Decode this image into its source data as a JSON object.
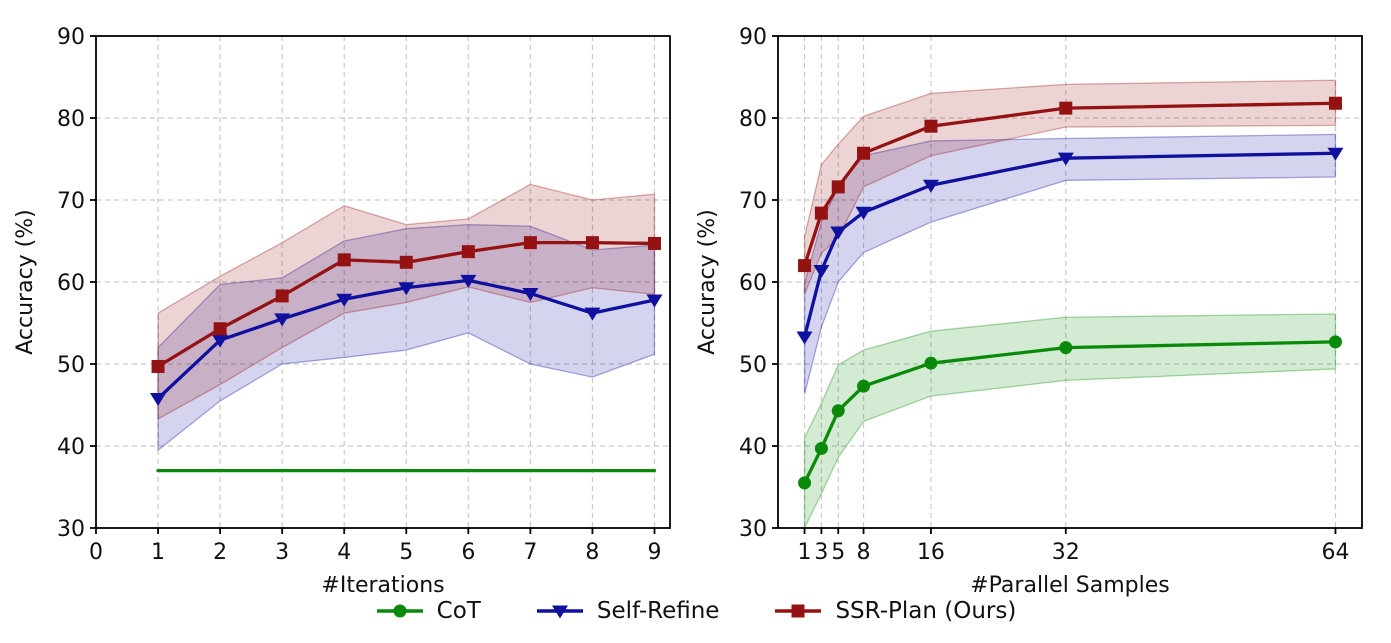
{
  "colors": {
    "cot": "#0a8a0a",
    "self_refine": "#10109e",
    "ssr_plan": "#941212",
    "grid": "#c9c9c9",
    "axis": "#000000",
    "band_fill_opacity": 0.18,
    "band_edge_opacity": 0.35
  },
  "legend": {
    "items": [
      {
        "label": "CoT",
        "marker": "circle",
        "color_key": "cot"
      },
      {
        "label": "Self-Refine",
        "marker": "triangle-down",
        "color_key": "self_refine"
      },
      {
        "label": "SSR-Plan (Ours)",
        "marker": "square",
        "color_key": "ssr_plan"
      }
    ]
  },
  "chart_data": [
    {
      "type": "line",
      "title": "",
      "xlabel": "#Iterations",
      "ylabel": "Accuracy (%)",
      "xlim": [
        0,
        9.25
      ],
      "ylim": [
        30,
        90
      ],
      "xticks": [
        0,
        1,
        2,
        3,
        4,
        5,
        6,
        7,
        8,
        9
      ],
      "yticks": [
        30,
        40,
        50,
        60,
        70,
        80,
        90
      ],
      "grid": true,
      "legend_position": "figure-bottom-center",
      "series": [
        {
          "name": "CoT",
          "color_key": "cot",
          "marker": "none",
          "x": [
            1,
            2,
            3,
            4,
            5,
            6,
            7,
            8,
            9
          ],
          "y": [
            37.0,
            37.0,
            37.0,
            37.0,
            37.0,
            37.0,
            37.0,
            37.0,
            37.0
          ]
        },
        {
          "name": "Self-Refine",
          "color_key": "self_refine",
          "marker": "triangle-down",
          "x": [
            1,
            2,
            3,
            4,
            5,
            6,
            7,
            8,
            9
          ],
          "y": [
            45.8,
            52.9,
            55.5,
            57.9,
            59.3,
            60.2,
            58.6,
            56.2,
            57.8
          ],
          "band_lower": [
            39.5,
            45.5,
            50.0,
            50.8,
            51.7,
            53.8,
            50.0,
            48.4,
            51.2
          ],
          "band_upper": [
            52.0,
            59.7,
            60.5,
            65.0,
            66.5,
            67.0,
            66.8,
            63.9,
            64.5
          ]
        },
        {
          "name": "SSR-Plan (Ours)",
          "color_key": "ssr_plan",
          "marker": "square",
          "x": [
            1,
            2,
            3,
            4,
            5,
            6,
            7,
            8,
            9
          ],
          "y": [
            49.7,
            54.3,
            58.3,
            62.7,
            62.4,
            63.7,
            64.8,
            64.8,
            64.7
          ],
          "band_lower": [
            43.3,
            47.5,
            52.0,
            56.2,
            57.5,
            59.4,
            57.5,
            59.3,
            58.5
          ],
          "band_upper": [
            56.2,
            60.7,
            64.8,
            69.3,
            67.0,
            67.7,
            71.9,
            70.0,
            70.7
          ]
        }
      ]
    },
    {
      "type": "line",
      "title": "",
      "xlabel": "#Parallel Samples",
      "ylabel": "Accuracy (%)",
      "xlim": [
        -2.15,
        67.15
      ],
      "ylim": [
        30,
        90
      ],
      "xticks": [
        1,
        3,
        5,
        8,
        16,
        32,
        64
      ],
      "yticks": [
        30,
        40,
        50,
        60,
        70,
        80,
        90
      ],
      "grid": true,
      "legend_position": "figure-bottom-center",
      "series": [
        {
          "name": "CoT",
          "color_key": "cot",
          "marker": "circle",
          "x": [
            1,
            3,
            5,
            8,
            16,
            32,
            64
          ],
          "y": [
            35.5,
            39.7,
            44.3,
            47.3,
            50.1,
            52.0,
            52.7
          ],
          "band_lower": [
            30.0,
            34.2,
            38.6,
            43.0,
            46.1,
            48.0,
            49.4
          ],
          "band_upper": [
            41.0,
            45.2,
            49.9,
            51.7,
            54.0,
            55.7,
            56.1
          ]
        },
        {
          "name": "Self-Refine",
          "color_key": "self_refine",
          "marker": "triangle-down",
          "x": [
            1,
            3,
            5,
            8,
            16,
            32,
            64
          ],
          "y": [
            53.3,
            61.4,
            66.1,
            68.5,
            71.8,
            75.1,
            75.7
          ],
          "band_lower": [
            46.3,
            54.5,
            60.0,
            63.6,
            67.3,
            72.4,
            72.8
          ],
          "band_upper": [
            59.8,
            67.3,
            71.6,
            75.4,
            77.2,
            77.5,
            78.0
          ]
        },
        {
          "name": "SSR-Plan (Ours)",
          "color_key": "ssr_plan",
          "marker": "square",
          "x": [
            1,
            3,
            5,
            8,
            16,
            32,
            64
          ],
          "y": [
            62.0,
            68.4,
            71.6,
            75.7,
            79.0,
            81.2,
            81.8
          ],
          "band_lower": [
            58.5,
            63.5,
            65.4,
            71.6,
            75.4,
            78.9,
            79.1
          ],
          "band_upper": [
            65.5,
            74.3,
            76.8,
            80.2,
            83.0,
            84.1,
            84.6
          ]
        }
      ]
    }
  ]
}
